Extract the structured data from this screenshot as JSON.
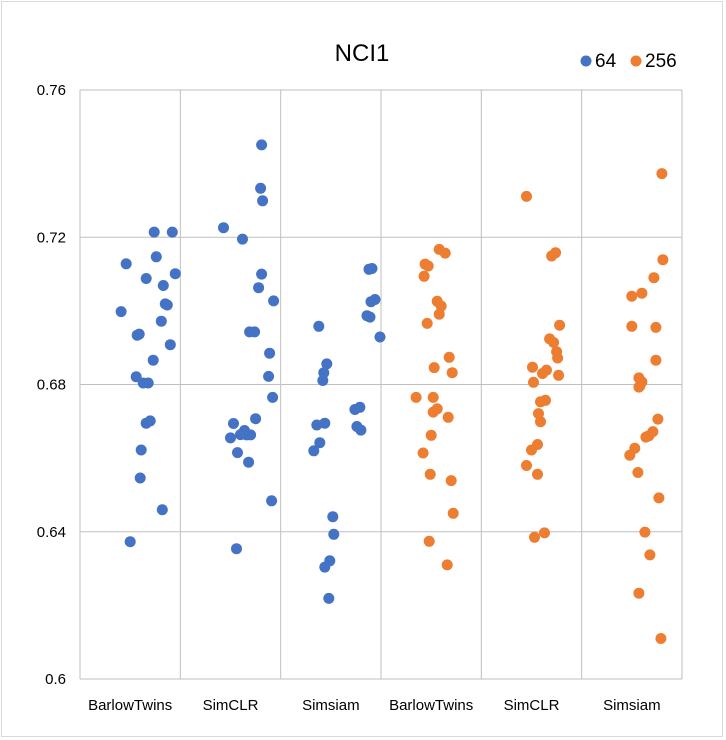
{
  "chart_data": {
    "type": "scatter",
    "title": "NCI1",
    "categories": [
      "BarlowTwins",
      "SimCLR",
      "Simsiam",
      "BarlowTwins",
      "SimCLR",
      "Simsiam"
    ],
    "ylim": [
      0.6,
      0.76
    ],
    "yticks": [
      0.6,
      0.64,
      0.68,
      0.72,
      0.76
    ],
    "ytick_labels": [
      "0.6",
      "0.64",
      "0.68",
      "0.72",
      "0.76"
    ],
    "grid": true,
    "legend_position": "top-right",
    "series": [
      {
        "name": "64",
        "color": "#4472c4",
        "groups": [
          {
            "category_index": 0,
            "points": [
              [
                0.46,
                0.7128
              ],
              [
                0.74,
                0.7214
              ],
              [
                0.92,
                0.7214
              ],
              [
                0.66,
                0.7088
              ],
              [
                0.95,
                0.7101
              ],
              [
                0.76,
                0.7147
              ],
              [
                0.41,
                0.6998
              ],
              [
                0.83,
                0.7069
              ],
              [
                0.85,
                0.7019
              ],
              [
                0.87,
                0.7016
              ],
              [
                0.81,
                0.6972
              ],
              [
                0.59,
                0.6937
              ],
              [
                0.57,
                0.6934
              ],
              [
                0.9,
                0.6908
              ],
              [
                0.73,
                0.6866
              ],
              [
                0.56,
                0.6821
              ],
              [
                0.63,
                0.6804
              ],
              [
                0.68,
                0.6804
              ],
              [
                0.7,
                0.6701
              ],
              [
                0.66,
                0.6695
              ],
              [
                0.61,
                0.6622
              ],
              [
                0.6,
                0.6546
              ],
              [
                0.82,
                0.646
              ],
              [
                0.5,
                0.6373
              ]
            ]
          },
          {
            "category_index": 1,
            "points": [
              [
                0.81,
                0.7451
              ],
              [
                0.8,
                0.7333
              ],
              [
                0.82,
                0.7299
              ],
              [
                0.43,
                0.7226
              ],
              [
                0.62,
                0.7195
              ],
              [
                0.81,
                0.71
              ],
              [
                0.78,
                0.7063
              ],
              [
                0.93,
                0.7027
              ],
              [
                0.69,
                0.6943
              ],
              [
                0.74,
                0.6943
              ],
              [
                0.89,
                0.6885
              ],
              [
                0.88,
                0.6822
              ],
              [
                0.92,
                0.6765
              ],
              [
                0.75,
                0.6707
              ],
              [
                0.53,
                0.6694
              ],
              [
                0.64,
                0.6675
              ],
              [
                0.6,
                0.6664
              ],
              [
                0.66,
                0.6663
              ],
              [
                0.7,
                0.6663
              ],
              [
                0.5,
                0.6655
              ],
              [
                0.57,
                0.6615
              ],
              [
                0.68,
                0.6589
              ],
              [
                0.91,
                0.6484
              ],
              [
                0.56,
                0.6354
              ]
            ]
          },
          {
            "category_index": 2,
            "points": [
              [
                0.91,
                0.7115
              ],
              [
                0.88,
                0.7113
              ],
              [
                0.94,
                0.7031
              ],
              [
                0.9,
                0.7025
              ],
              [
                0.86,
                0.6987
              ],
              [
                0.89,
                0.6983
              ],
              [
                0.99,
                0.6929
              ],
              [
                0.38,
                0.6958
              ],
              [
                0.46,
                0.6856
              ],
              [
                0.43,
                0.6832
              ],
              [
                0.42,
                0.6811
              ],
              [
                0.79,
                0.6738
              ],
              [
                0.74,
                0.6732
              ],
              [
                0.36,
                0.669
              ],
              [
                0.44,
                0.6695
              ],
              [
                0.76,
                0.6686
              ],
              [
                0.8,
                0.6676
              ],
              [
                0.39,
                0.6642
              ],
              [
                0.33,
                0.662
              ],
              [
                0.52,
                0.6441
              ],
              [
                0.53,
                0.6393
              ],
              [
                0.49,
                0.6321
              ],
              [
                0.44,
                0.6304
              ],
              [
                0.48,
                0.6219
              ]
            ]
          }
        ]
      },
      {
        "name": "256",
        "color": "#ed7d31",
        "groups": [
          {
            "category_index": 3,
            "points": [
              [
                0.58,
                0.7167
              ],
              [
                0.64,
                0.7157
              ],
              [
                0.44,
                0.7127
              ],
              [
                0.47,
                0.7122
              ],
              [
                0.43,
                0.7094
              ],
              [
                0.56,
                0.7026
              ],
              [
                0.6,
                0.7013
              ],
              [
                0.58,
                0.6991
              ],
              [
                0.46,
                0.6966
              ],
              [
                0.68,
                0.6874
              ],
              [
                0.53,
                0.6846
              ],
              [
                0.71,
                0.6832
              ],
              [
                0.35,
                0.6765
              ],
              [
                0.52,
                0.6765
              ],
              [
                0.56,
                0.6734
              ],
              [
                0.52,
                0.6725
              ],
              [
                0.67,
                0.6711
              ],
              [
                0.5,
                0.6662
              ],
              [
                0.42,
                0.6614
              ],
              [
                0.49,
                0.6556
              ],
              [
                0.7,
                0.6539
              ],
              [
                0.72,
                0.645
              ],
              [
                0.48,
                0.6374
              ],
              [
                0.66,
                0.631
              ]
            ]
          },
          {
            "category_index": 4,
            "points": [
              [
                0.45,
                0.7311
              ],
              [
                0.74,
                0.7158
              ],
              [
                0.7,
                0.7149
              ],
              [
                0.78,
                0.6961
              ],
              [
                0.68,
                0.6924
              ],
              [
                0.72,
                0.6914
              ],
              [
                0.75,
                0.6889
              ],
              [
                0.76,
                0.6872
              ],
              [
                0.65,
                0.6839
              ],
              [
                0.51,
                0.6847
              ],
              [
                0.61,
                0.683
              ],
              [
                0.77,
                0.6825
              ],
              [
                0.52,
                0.6806
              ],
              [
                0.64,
                0.6757
              ],
              [
                0.59,
                0.6753
              ],
              [
                0.57,
                0.6721
              ],
              [
                0.59,
                0.6699
              ],
              [
                0.56,
                0.6637
              ],
              [
                0.5,
                0.6622
              ],
              [
                0.45,
                0.658
              ],
              [
                0.56,
                0.6556
              ],
              [
                0.63,
                0.6397
              ],
              [
                0.53,
                0.6385
              ]
            ]
          },
          {
            "category_index": 5,
            "points": [
              [
                0.8,
                0.7373
              ],
              [
                0.81,
                0.7139
              ],
              [
                0.72,
                0.709
              ],
              [
                0.6,
                0.7048
              ],
              [
                0.5,
                0.704
              ],
              [
                0.5,
                0.6958
              ],
              [
                0.74,
                0.6955
              ],
              [
                0.74,
                0.6866
              ],
              [
                0.57,
                0.6818
              ],
              [
                0.6,
                0.6807
              ],
              [
                0.58,
                0.6796
              ],
              [
                0.57,
                0.6793
              ],
              [
                0.76,
                0.6706
              ],
              [
                0.71,
                0.6672
              ],
              [
                0.67,
                0.6661
              ],
              [
                0.64,
                0.6657
              ],
              [
                0.53,
                0.6627
              ],
              [
                0.48,
                0.6608
              ],
              [
                0.56,
                0.6561
              ],
              [
                0.77,
                0.6492
              ],
              [
                0.63,
                0.6399
              ],
              [
                0.68,
                0.6337
              ],
              [
                0.57,
                0.6233
              ],
              [
                0.79,
                0.611
              ]
            ]
          }
        ]
      }
    ]
  }
}
